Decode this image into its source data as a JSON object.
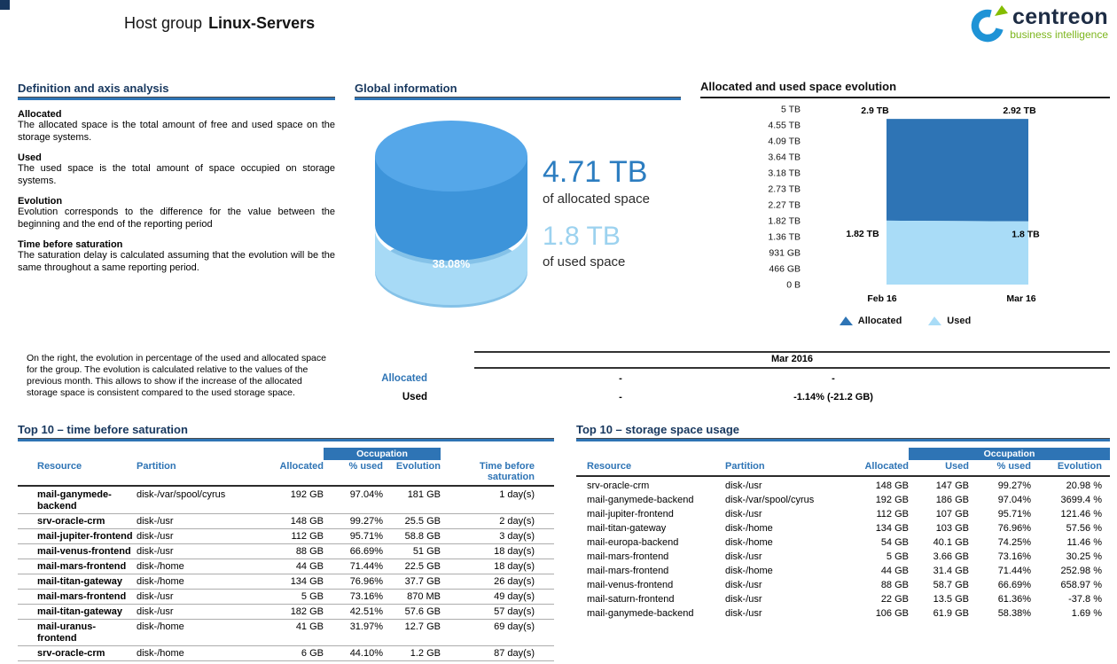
{
  "header": {
    "title_prefix": "Host group",
    "title_name": "Linux-Servers",
    "logo_name": "centreon",
    "logo_tagline": "business intelligence"
  },
  "colors": {
    "accent_blue": "#2E74B5",
    "heading_navy": "#17375E",
    "allocated_dark_blue": "#2E74B5",
    "used_light_blue": "#A9DCF7",
    "logo_blue": "#1E93D6",
    "logo_green": "#84BD00"
  },
  "definitions": {
    "heading": "Definition and axis analysis",
    "items": [
      {
        "term": "Allocated",
        "text": "The allocated space is the total amount of free and used space on the storage systems."
      },
      {
        "term": "Used",
        "text": "The used space is the total amount of space occupied on storage systems."
      },
      {
        "term": "Evolution",
        "text": "Evolution corresponds to the difference for the value between the beginning and the end of the reporting period"
      },
      {
        "term": "Time before saturation",
        "text": "The saturation delay is calculated assuming that the evolution will be the same throughout a same reporting period."
      }
    ],
    "note": "On the right, the evolution in percentage of the used and allocated space for the group. The evolution is calculated relative to the values of the previous month. This allows to show if the increase of the allocated storage space is consistent compared to the used storage space."
  },
  "global_info": {
    "heading": "Global information",
    "used_percent": "38.08%",
    "allocated_value": "4.71 TB",
    "allocated_caption": "of allocated space",
    "used_value": "1.8 TB",
    "used_caption": "of used space"
  },
  "evolution_chart": {
    "heading": "Allocated and used space evolution"
  },
  "evolution_summary": {
    "period": "Mar 2016",
    "rows": [
      {
        "label": "Allocated",
        "col1": "-",
        "col2": "-"
      },
      {
        "label": "Used",
        "col1": "-",
        "col2": "-1.14% (-21.2 GB)"
      }
    ]
  },
  "saturation_table": {
    "heading": "Top 10 – time before saturation",
    "occupation_label": "Occupation",
    "columns": [
      "Resource",
      "Partition",
      "Allocated",
      "% used",
      "Evolution",
      "Time before saturation"
    ],
    "rows": [
      [
        "mail-ganymede-backend",
        "disk-/var/spool/cyrus",
        "192 GB",
        "97.04%",
        "181 GB",
        "1 day(s)"
      ],
      [
        "srv-oracle-crm",
        "disk-/usr",
        "148 GB",
        "99.27%",
        "25.5 GB",
        "2 day(s)"
      ],
      [
        "mail-jupiter-frontend",
        "disk-/usr",
        "112 GB",
        "95.71%",
        "58.8 GB",
        "3 day(s)"
      ],
      [
        "mail-venus-frontend",
        "disk-/usr",
        "88 GB",
        "66.69%",
        "51 GB",
        "18 day(s)"
      ],
      [
        "mail-mars-frontend",
        "disk-/home",
        "44 GB",
        "71.44%",
        "22.5 GB",
        "18 day(s)"
      ],
      [
        "mail-titan-gateway",
        "disk-/home",
        "134 GB",
        "76.96%",
        "37.7 GB",
        "26 day(s)"
      ],
      [
        "mail-mars-frontend",
        "disk-/usr",
        "5 GB",
        "73.16%",
        "870 MB",
        "49 day(s)"
      ],
      [
        "mail-titan-gateway",
        "disk-/usr",
        "182 GB",
        "42.51%",
        "57.6 GB",
        "57 day(s)"
      ],
      [
        "mail-uranus-frontend",
        "disk-/home",
        "41 GB",
        "31.97%",
        "12.7 GB",
        "69 day(s)"
      ],
      [
        "srv-oracle-crm",
        "disk-/home",
        "6 GB",
        "44.10%",
        "1.2 GB",
        "87 day(s)"
      ]
    ]
  },
  "usage_table": {
    "heading": "Top 10 – storage space usage",
    "occupation_label": "Occupation",
    "columns": [
      "Resource",
      "Partition",
      "Allocated",
      "Used",
      "% used",
      "Evolution"
    ],
    "rows": [
      [
        "srv-oracle-crm",
        "disk-/usr",
        "148 GB",
        "147 GB",
        "99.27%",
        "20.98 %"
      ],
      [
        "mail-ganymede-backend",
        "disk-/var/spool/cyrus",
        "192 GB",
        "186 GB",
        "97.04%",
        "3699.4 %"
      ],
      [
        "mail-jupiter-frontend",
        "disk-/usr",
        "112 GB",
        "107 GB",
        "95.71%",
        "121.46 %"
      ],
      [
        "mail-titan-gateway",
        "disk-/home",
        "134 GB",
        "103 GB",
        "76.96%",
        "57.56 %"
      ],
      [
        "mail-europa-backend",
        "disk-/home",
        "54 GB",
        "40.1 GB",
        "74.25%",
        "11.46 %"
      ],
      [
        "mail-mars-frontend",
        "disk-/usr",
        "5 GB",
        "3.66 GB",
        "73.16%",
        "30.25 %"
      ],
      [
        "mail-mars-frontend",
        "disk-/home",
        "44 GB",
        "31.4 GB",
        "71.44%",
        "252.98 %"
      ],
      [
        "mail-venus-frontend",
        "disk-/usr",
        "88 GB",
        "58.7 GB",
        "66.69%",
        "658.97 %"
      ],
      [
        "mail-saturn-frontend",
        "disk-/usr",
        "22 GB",
        "13.5 GB",
        "61.36%",
        "-37.8 %"
      ],
      [
        "mail-ganymede-backend",
        "disk-/usr",
        "106 GB",
        "61.9 GB",
        "58.38%",
        "1.69 %"
      ]
    ]
  },
  "chart_data": [
    {
      "type": "pie",
      "title": "Global information",
      "slices": [
        {
          "label": "used",
          "value": 38.08
        },
        {
          "label": "free",
          "value": 61.92
        }
      ],
      "center_label": "38.08%",
      "annotations": [
        "4.71 TB of allocated space",
        "1.8 TB of used space"
      ]
    },
    {
      "type": "area",
      "title": "Allocated and used space evolution",
      "stacked": true,
      "x": [
        "Feb 16",
        "Mar 16"
      ],
      "series": [
        {
          "name": "Allocated",
          "values_tb": [
            2.9,
            2.92
          ],
          "labels": [
            "2.9 TB",
            "2.92 TB"
          ],
          "color": "#2E74B5"
        },
        {
          "name": "Used",
          "values_tb": [
            1.82,
            1.8
          ],
          "labels": [
            "1.82 TB",
            "1.8 TB"
          ],
          "color": "#A9DCF7"
        }
      ],
      "ylim_tb": [
        0,
        5
      ],
      "yticks": [
        "5 TB",
        "4.55 TB",
        "4.09 TB",
        "3.64 TB",
        "3.18 TB",
        "2.73 TB",
        "2.27 TB",
        "1.82 TB",
        "1.36 TB",
        "931 GB",
        "466 GB",
        "0 B"
      ],
      "legend_position": "bottom",
      "grid": false
    }
  ]
}
